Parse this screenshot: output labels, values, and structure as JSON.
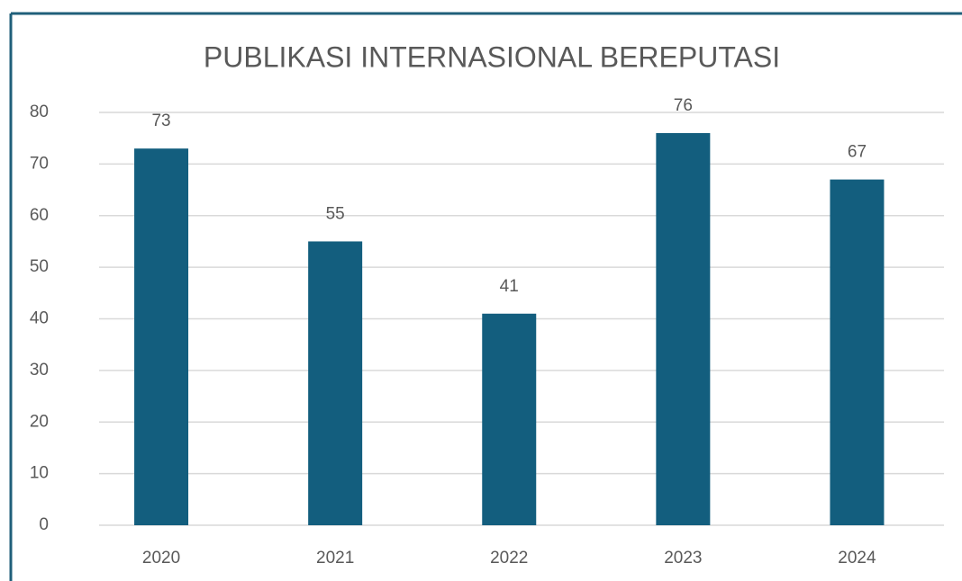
{
  "chart_data": {
    "type": "bar",
    "title": "PUBLIKASI INTERNASIONAL BEREPUTASI",
    "categories": [
      "2020",
      "2021",
      "2022",
      "2023",
      "2024"
    ],
    "values": [
      73,
      55,
      41,
      76,
      67
    ],
    "color": "#135e7e",
    "ylim": [
      0,
      80
    ],
    "yticks": [
      0,
      10,
      20,
      30,
      40,
      50,
      60,
      70,
      80
    ],
    "grid": true
  }
}
